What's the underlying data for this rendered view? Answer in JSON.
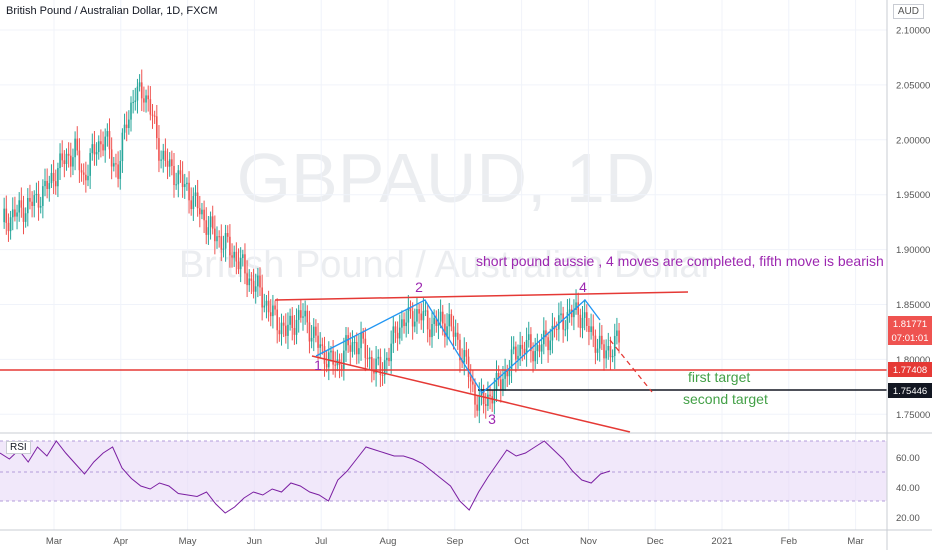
{
  "header": {
    "symbol_title": "British Pound / Australian Dollar, 1D, FXCM",
    "currency_badge": "AUD"
  },
  "watermark": {
    "ticker": "GBPAUD, 1D",
    "name": "British Pound / Australian Dollar"
  },
  "annotations": {
    "main_text": "short pound aussie , 4 moves are completed, fifth move is bearish",
    "wave_labels": [
      "1",
      "2",
      "3",
      "4"
    ],
    "first_target": "first target",
    "second_target": "second target"
  },
  "price_axis": {
    "ticks": [
      "2.10000",
      "2.05000",
      "2.00000",
      "1.95000",
      "1.90000",
      "1.85000",
      "1.80000",
      "1.75000"
    ],
    "last_price": "1.81771",
    "countdown": "07:01:01",
    "first_target_price": "1.77408",
    "second_target_price": "1.75446"
  },
  "rsi": {
    "label": "RSI",
    "ticks": [
      "60.00",
      "40.00",
      "20.00"
    ]
  },
  "time_axis": {
    "ticks": [
      "Mar",
      "Apr",
      "May",
      "Jun",
      "Jul",
      "Aug",
      "Sep",
      "Oct",
      "Nov",
      "Dec",
      "2021",
      "Feb",
      "Mar"
    ]
  },
  "colors": {
    "up": "#26a69a",
    "down": "#ef5350",
    "trend_red": "#e53935",
    "wave_blue": "#2196f3",
    "rsi_line": "#7b1fa2",
    "rsi_band": "#e8d9f7",
    "annotation_purple": "#9c27b0",
    "annotation_green": "#43a047"
  },
  "chart_data": {
    "type": "candlestick",
    "title": "British Pound / Australian Dollar, 1D, FXCM",
    "ylim": [
      1.735,
      2.11
    ],
    "close_path": [
      [
        0,
        1.925
      ],
      [
        8,
        1.935
      ],
      [
        16,
        1.945
      ],
      [
        22,
        1.96
      ],
      [
        28,
        1.98
      ],
      [
        34,
        1.99
      ],
      [
        38,
        1.965
      ],
      [
        44,
        1.995
      ],
      [
        48,
        2.0
      ],
      [
        54,
        1.97
      ],
      [
        58,
        2.02
      ],
      [
        62,
        2.04
      ],
      [
        66,
        2.045
      ],
      [
        70,
        2.02
      ],
      [
        74,
        1.985
      ],
      [
        80,
        1.97
      ],
      [
        86,
        1.955
      ],
      [
        92,
        1.935
      ],
      [
        98,
        1.915
      ],
      [
        104,
        1.905
      ],
      [
        110,
        1.89
      ],
      [
        116,
        1.87
      ],
      [
        120,
        1.862
      ],
      [
        124,
        1.845
      ],
      [
        128,
        1.835
      ],
      [
        132,
        1.825
      ],
      [
        136,
        1.835
      ],
      [
        140,
        1.84
      ],
      [
        144,
        1.825
      ],
      [
        148,
        1.81
      ],
      [
        152,
        1.8
      ],
      [
        156,
        1.795
      ],
      [
        160,
        1.81
      ],
      [
        164,
        1.815
      ],
      [
        168,
        1.812
      ],
      [
        172,
        1.795
      ],
      [
        176,
        1.79
      ],
      [
        180,
        1.805
      ],
      [
        184,
        1.83
      ],
      [
        188,
        1.835
      ],
      [
        192,
        1.842
      ],
      [
        196,
        1.838
      ],
      [
        200,
        1.83
      ],
      [
        204,
        1.835
      ],
      [
        208,
        1.832
      ],
      [
        212,
        1.815
      ],
      [
        216,
        1.795
      ],
      [
        220,
        1.765
      ],
      [
        224,
        1.76
      ],
      [
        228,
        1.77
      ],
      [
        232,
        1.78
      ],
      [
        236,
        1.795
      ],
      [
        240,
        1.81
      ],
      [
        244,
        1.812
      ],
      [
        248,
        1.808
      ],
      [
        252,
        1.815
      ],
      [
        256,
        1.825
      ],
      [
        260,
        1.835
      ],
      [
        264,
        1.84
      ],
      [
        268,
        1.845
      ],
      [
        272,
        1.83
      ],
      [
        276,
        1.818
      ],
      [
        280,
        1.805
      ],
      [
        284,
        1.812
      ],
      [
        287,
        1.818
      ]
    ],
    "rsi_values": [
      62,
      58,
      64,
      56,
      66,
      60,
      70,
      62,
      55,
      48,
      56,
      62,
      66,
      52,
      45,
      40,
      38,
      42,
      40,
      35,
      34,
      33,
      36,
      28,
      22,
      26,
      32,
      36,
      34,
      38,
      36,
      42,
      40,
      36,
      34,
      30,
      44,
      50,
      58,
      66,
      64,
      62,
      60,
      60,
      58,
      55,
      50,
      45,
      40,
      30,
      24,
      36,
      46,
      55,
      64,
      60,
      62,
      66,
      70,
      64,
      58,
      50,
      44,
      42,
      48,
      50
    ]
  }
}
